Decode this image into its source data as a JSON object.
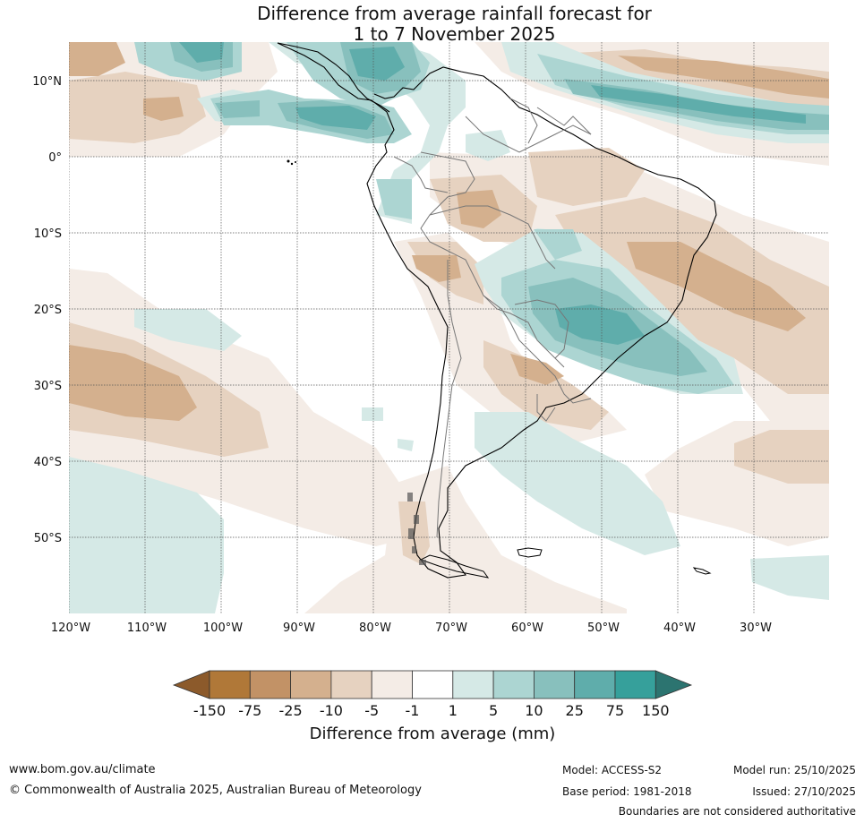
{
  "title": {
    "line1": "Difference from average rainfall forecast for",
    "line2": "1 to 7 November 2025"
  },
  "map": {
    "lat_labels": [
      "10°N",
      "0°",
      "10°S",
      "20°S",
      "30°S",
      "40°S",
      "50°S"
    ],
    "lon_labels": [
      "120°W",
      "110°W",
      "100°W",
      "90°W",
      "80°W",
      "70°W",
      "60°W",
      "50°W",
      "40°W",
      "30°W"
    ],
    "lat_values": [
      10,
      0,
      -10,
      -20,
      -30,
      -40,
      -50
    ],
    "lon_values": [
      -120,
      -110,
      -100,
      -90,
      -80,
      -70,
      -60,
      -50,
      -40,
      -30
    ],
    "extent": {
      "lon_min": -120,
      "lon_max": -20,
      "lat_min": -60,
      "lat_max": 15
    }
  },
  "colorbar": {
    "colors": [
      "#8c5a2b",
      "#b07838",
      "#c29266",
      "#d4b08e",
      "#e6d2c0",
      "#f4ece6",
      "#ffffff",
      "#d5e9e6",
      "#acd5d2",
      "#88c0bd",
      "#5fadab",
      "#36a09b",
      "#2c7470"
    ],
    "tick_labels": [
      "-150",
      "-75",
      "-25",
      "-10",
      "-5",
      "-1",
      "1",
      "5",
      "10",
      "25",
      "75",
      "150"
    ],
    "label": "Difference from average (mm)"
  },
  "footer": {
    "website": "www.bom.gov.au/climate",
    "copyright": "© Commonwealth of Australia 2025, Australian Bureau of Meteorology",
    "model": "Model: ACCESS-S2",
    "base_period": "Base period: 1981-2018",
    "model_run": "Model run: 25/10/2025",
    "issued": "Issued: 27/10/2025",
    "disclaimer": "Boundaries are not considered authoritative"
  }
}
